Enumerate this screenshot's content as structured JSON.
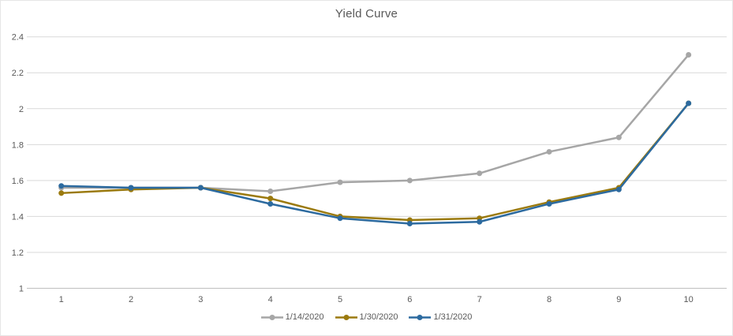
{
  "chart_data": {
    "type": "line",
    "title": "Yield Curve",
    "xlabel": "",
    "ylabel": "",
    "categories": [
      1,
      2,
      3,
      4,
      5,
      6,
      7,
      8,
      9,
      10
    ],
    "x_tick_labels": [
      "1",
      "2",
      "3",
      "4",
      "5",
      "6",
      "7",
      "8",
      "9",
      "10"
    ],
    "y_ticks": [
      1,
      1.2,
      1.4,
      1.6,
      1.8,
      2,
      2.2,
      2.4
    ],
    "y_tick_labels": [
      "1",
      "1.2",
      "1.4",
      "1.6",
      "1.8",
      "2",
      "2.2",
      "2.4"
    ],
    "ylim": [
      1,
      2.4
    ],
    "grid": "horizontal",
    "legend_position": "bottom",
    "marker": "circle",
    "series": [
      {
        "name": "1/14/2020",
        "color": "#A6A6A6",
        "values": [
          1.56,
          1.56,
          1.56,
          1.54,
          1.59,
          1.6,
          1.64,
          1.76,
          1.84,
          2.3
        ]
      },
      {
        "name": "1/30/2020",
        "color": "#9B7A0E",
        "values": [
          1.53,
          1.55,
          1.56,
          1.5,
          1.4,
          1.38,
          1.39,
          1.48,
          1.56,
          2.03
        ]
      },
      {
        "name": "1/31/2020",
        "color": "#2C6A9F",
        "values": [
          1.57,
          1.56,
          1.56,
          1.47,
          1.39,
          1.36,
          1.37,
          1.47,
          1.55,
          2.03
        ]
      }
    ],
    "colors": {
      "background": "#FFFFFF",
      "gridline": "#D9D9D9",
      "axis_line": "#BFBFBF",
      "tick_label": "#595959",
      "title": "#595959",
      "legend_text": "#595959"
    }
  }
}
